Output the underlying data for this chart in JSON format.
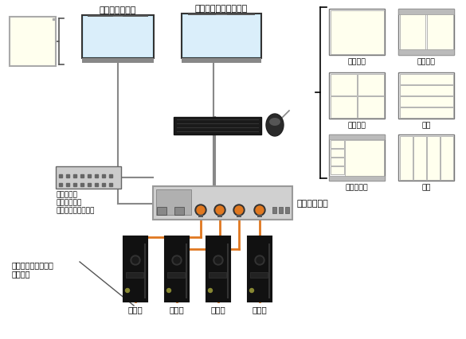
{
  "bg_color": "#ffffff",
  "light_yellow": "#ffffee",
  "gray_panel": "#bbbbbb",
  "orange": "#e07820",
  "line_gray": "#888888",
  "dark": "#1a1a1a",
  "monitor_blue_top": "#b8e0f0",
  "monitor_blue_bot": "#d8f0f8",
  "sub_monitor_label": "【サブモニタ】",
  "main_console_label": "【メインコンソール】",
  "rpm_label": "ＲＰＭ－４Ｎ",
  "rpm_unit_label": "ＲＰＭ専用\n操作ユニット\nＭＯＵ－２（別売）",
  "kvm_cable_label": "ＫＶＭ複合ケーブル\n（別売）",
  "pc_labels": [
    "ＰＣ１",
    "ＰＣ２",
    "ＰＣ３",
    "ＰＣ４"
  ],
  "display_labels": [
    "シングル",
    "自動分割",
    "均等分割",
    "横割",
    "４－１分割",
    "縦割"
  ]
}
